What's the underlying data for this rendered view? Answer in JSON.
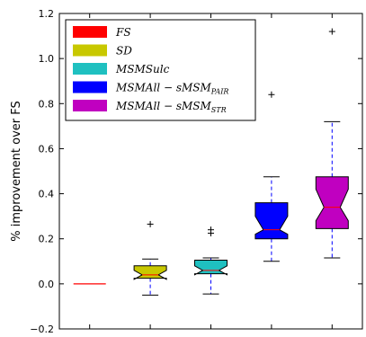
{
  "chart_data": {
    "type": "box",
    "title": "",
    "xlabel": "",
    "ylabel": "% improvement over FS",
    "ylim": [
      -0.2,
      1.2
    ],
    "yticks": [
      -0.2,
      0.0,
      0.2,
      0.4,
      0.6,
      0.8,
      1.0,
      1.2
    ],
    "ytick_labels": [
      "−0.2",
      "0.0",
      "0.2",
      "0.4",
      "0.6",
      "0.8",
      "1.0",
      "1.2"
    ],
    "notched": true,
    "grid": false,
    "legend_position": "top-left",
    "series": [
      {
        "name": "FS",
        "legend_main": "FS",
        "legend_sub": "",
        "color": "#ff0000",
        "stats": {
          "whislo": 0.0,
          "q1": 0.0,
          "med": 0.0,
          "q3": 0.0,
          "whishi": 0.0,
          "notch_lo": 0.0,
          "notch_hi": 0.0
        },
        "fliers": []
      },
      {
        "name": "SD",
        "legend_main": "SD",
        "legend_sub": "",
        "color": "#c8c800",
        "stats": {
          "whislo": -0.05,
          "q1": 0.025,
          "med": 0.04,
          "q3": 0.08,
          "whishi": 0.11,
          "notch_lo": 0.02,
          "notch_hi": 0.06
        },
        "fliers": [
          0.265
        ]
      },
      {
        "name": "MSMSulc",
        "legend_main": "MSMSulc",
        "legend_sub": "",
        "color": "#1fc0c0",
        "stats": {
          "whislo": -0.045,
          "q1": 0.045,
          "med": 0.06,
          "q3": 0.105,
          "whishi": 0.115,
          "notch_lo": 0.04,
          "notch_hi": 0.08
        },
        "fliers": [
          0.225,
          0.24
        ]
      },
      {
        "name": "MSMAll − sMSM_PAIR",
        "legend_main": "MSMAll − sMSM",
        "legend_sub": "PAIR",
        "color": "#0000ff",
        "stats": {
          "whislo": 0.1,
          "q1": 0.2,
          "med": 0.24,
          "q3": 0.36,
          "whishi": 0.475,
          "notch_lo": 0.22,
          "notch_hi": 0.3
        },
        "fliers": [
          0.84
        ]
      },
      {
        "name": "MSMAll − sMSM_STR",
        "legend_main": "MSMAll − sMSM",
        "legend_sub": "STR",
        "color": "#c000c0",
        "stats": {
          "whislo": 0.115,
          "q1": 0.245,
          "med": 0.34,
          "q3": 0.475,
          "whishi": 0.72,
          "notch_lo": 0.28,
          "notch_hi": 0.42
        },
        "fliers": [
          1.12
        ]
      }
    ]
  }
}
